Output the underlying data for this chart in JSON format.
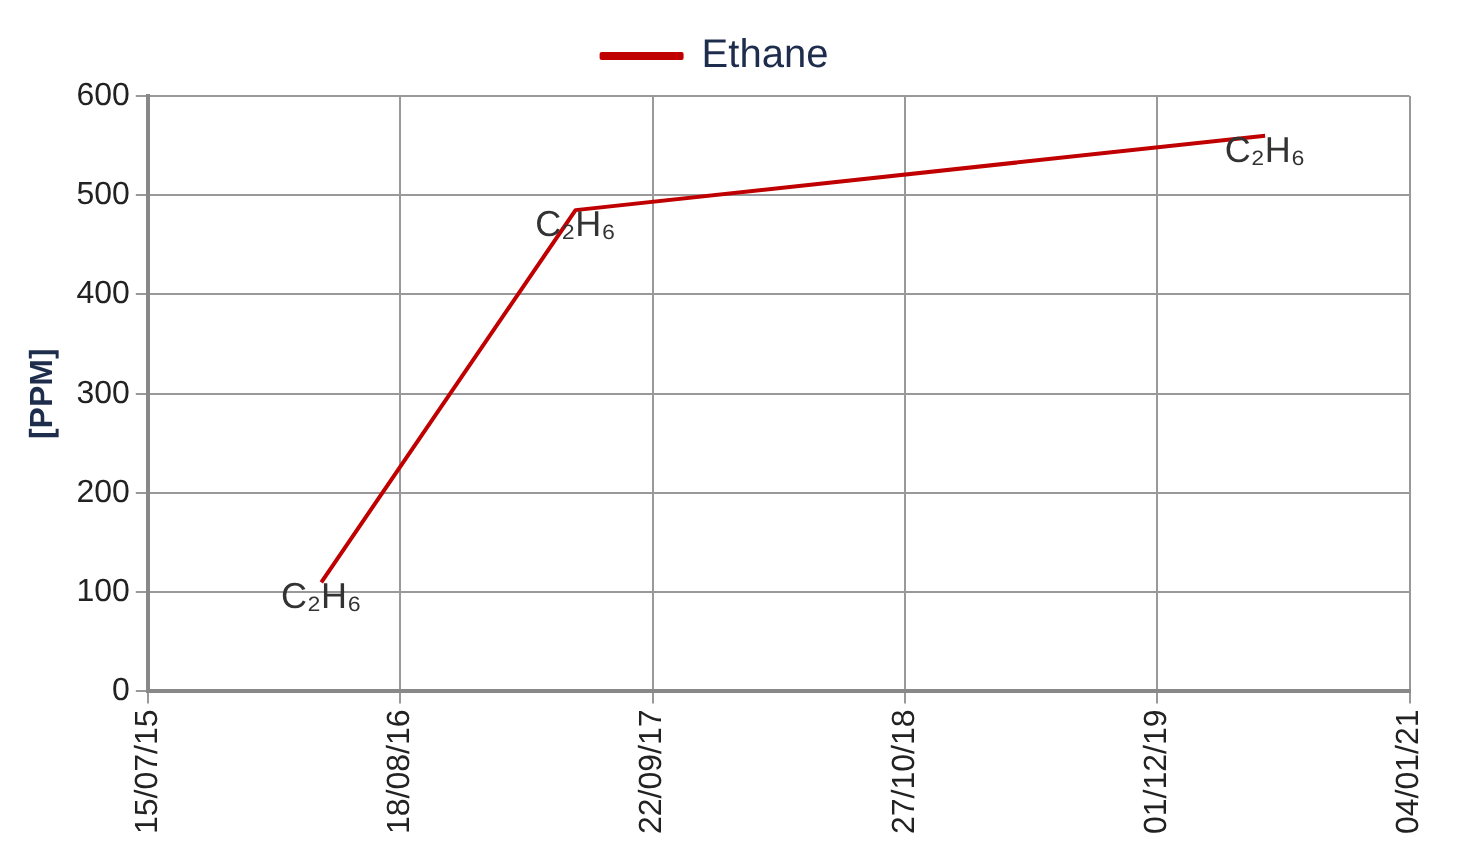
{
  "chart_data": {
    "type": "line",
    "ylabel": "[PPM]",
    "x": [
      "2016-04-15",
      "2017-05-23",
      "2020-05-20"
    ],
    "series": [
      {
        "name": "Ethane",
        "color": "#c00000",
        "values": [
          110,
          485,
          560
        ],
        "value_labels": [
          "C₂H₆",
          "C₂H₆",
          "C₂H₆"
        ]
      }
    ],
    "xlim": [
      "2015-07-15",
      "2021-01-04"
    ],
    "xticks": [
      {
        "value": "2015-07-15",
        "label": "15/07/15"
      },
      {
        "value": "2016-08-18",
        "label": "18/08/16"
      },
      {
        "value": "2017-09-22",
        "label": "22/09/17"
      },
      {
        "value": "2018-10-27",
        "label": "27/10/18"
      },
      {
        "value": "2019-12-01",
        "label": "01/12/19"
      },
      {
        "value": "2021-01-04",
        "label": "04/01/21"
      }
    ],
    "ylim": [
      0,
      600
    ],
    "yticks": [
      0,
      100,
      200,
      300,
      400,
      500,
      600
    ],
    "grid": true,
    "legend": "top",
    "marker": "none",
    "line_style": "solid"
  }
}
